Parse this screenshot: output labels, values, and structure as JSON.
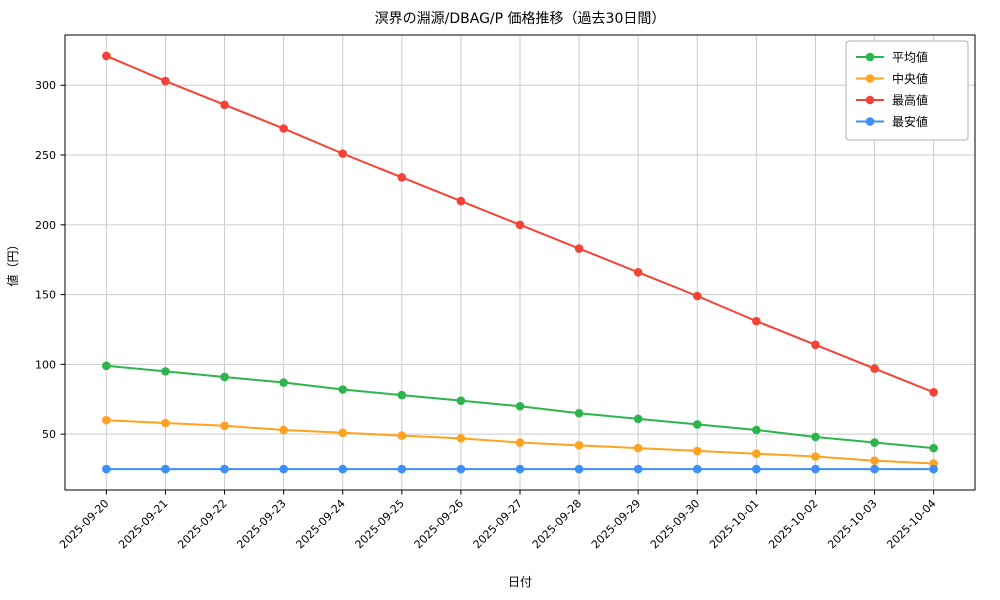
{
  "chart_data": {
    "type": "line",
    "title": "溟界の淵源/DBAG/P  価格推移（過去30日間）",
    "xlabel": "日付",
    "ylabel": "値（円）",
    "grid": true,
    "legend_position": "upper right",
    "ylim": [
      10,
      336
    ],
    "yticks": [
      50,
      100,
      150,
      200,
      250,
      300
    ],
    "categories": [
      "2025-09-20",
      "2025-09-21",
      "2025-09-22",
      "2025-09-23",
      "2025-09-24",
      "2025-09-25",
      "2025-09-26",
      "2025-09-27",
      "2025-09-28",
      "2025-09-29",
      "2025-09-30",
      "2025-10-01",
      "2025-10-02",
      "2025-10-03",
      "2025-10-04"
    ],
    "series": [
      {
        "name": "平均値",
        "color": "#2db54d",
        "values": [
          99,
          95,
          91,
          87,
          82,
          78,
          74,
          70,
          65,
          61,
          57,
          53,
          48,
          44,
          40
        ]
      },
      {
        "name": "中央値",
        "color": "#ffa21f",
        "values": [
          60,
          58,
          56,
          53,
          51,
          49,
          47,
          44,
          42,
          40,
          38,
          36,
          34,
          31,
          29
        ]
      },
      {
        "name": "最高値",
        "color": "#f44336",
        "values": [
          321,
          303,
          286,
          269,
          251,
          234,
          217,
          200,
          183,
          166,
          149,
          131,
          114,
          97,
          80
        ]
      },
      {
        "name": "最安値",
        "color": "#3d8ef8",
        "values": [
          25,
          25,
          25,
          25,
          25,
          25,
          25,
          25,
          25,
          25,
          25,
          25,
          25,
          25,
          25
        ]
      }
    ],
    "colors": {
      "grid": "#cccccc",
      "axis": "#000000",
      "legend_border": "#b0b0b0",
      "background": "#ffffff"
    }
  }
}
